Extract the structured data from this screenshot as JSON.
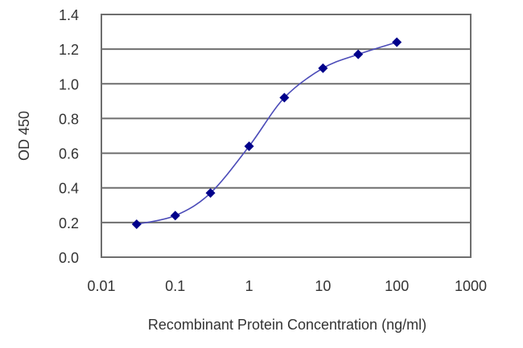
{
  "chart_data": {
    "type": "line",
    "title": "",
    "xlabel": "Recombinant Protein Concentration (ng/ml)",
    "ylabel": "OD 450",
    "x_scale": "log",
    "xlim": [
      0.01,
      1000
    ],
    "ylim": [
      0.0,
      1.4
    ],
    "x_ticks": [
      "0.01",
      "0.1",
      "1",
      "10",
      "100",
      "1000"
    ],
    "y_ticks": [
      "0.0",
      "0.2",
      "0.4",
      "0.6",
      "0.8",
      "1.0",
      "1.2",
      "1.4"
    ],
    "grid": {
      "horizontal": true,
      "vertical": false
    },
    "legend": null,
    "series": [
      {
        "name": "OD 450",
        "marker": "diamond",
        "color": "#00008b",
        "line_color": "#4b4bb8",
        "x": [
          0.03,
          0.1,
          0.3,
          1,
          3,
          10,
          30,
          100
        ],
        "y": [
          0.19,
          0.24,
          0.37,
          0.64,
          0.92,
          1.09,
          1.17,
          1.24
        ]
      }
    ]
  },
  "colors": {
    "gridline": "#6e6e6e",
    "frame": "#6e6e6e",
    "marker": "#00008b",
    "line": "#4b4bb8",
    "text": "#333333"
  }
}
